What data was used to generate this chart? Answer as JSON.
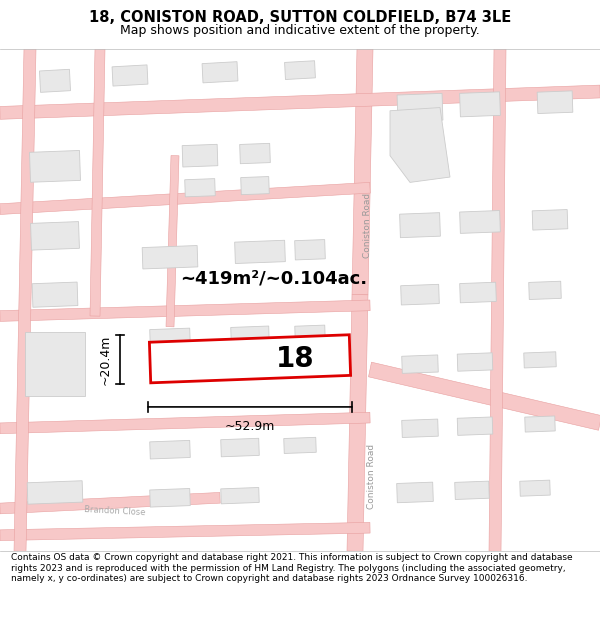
{
  "title_line1": "18, CONISTON ROAD, SUTTON COLDFIELD, B74 3LE",
  "title_line2": "Map shows position and indicative extent of the property.",
  "footer_text": "Contains OS data © Crown copyright and database right 2021. This information is subject to Crown copyright and database rights 2023 and is reproduced with the permission of HM Land Registry. The polygons (including the associated geometry, namely x, y co-ordinates) are subject to Crown copyright and database rights 2023 Ordnance Survey 100026316.",
  "bg_color": "#ffffff",
  "map_bg": "#ffffff",
  "road_color": "#f7c8c8",
  "road_edge": "#e8a0a0",
  "building_fill": "#e8e8e8",
  "building_edge": "#cccccc",
  "highlight_stroke": "#dd0000",
  "highlight_lw": 2.0,
  "property_label": "18",
  "area_label": "~419m²/~0.104ac.",
  "dim_width": "~52.9m",
  "dim_height": "~20.4m",
  "coniston_road_label": "Coniston Road",
  "brandon_close_label": "Brandon Close",
  "title_fontsize": 10.5,
  "subtitle_fontsize": 9,
  "footer_fontsize": 6.5
}
